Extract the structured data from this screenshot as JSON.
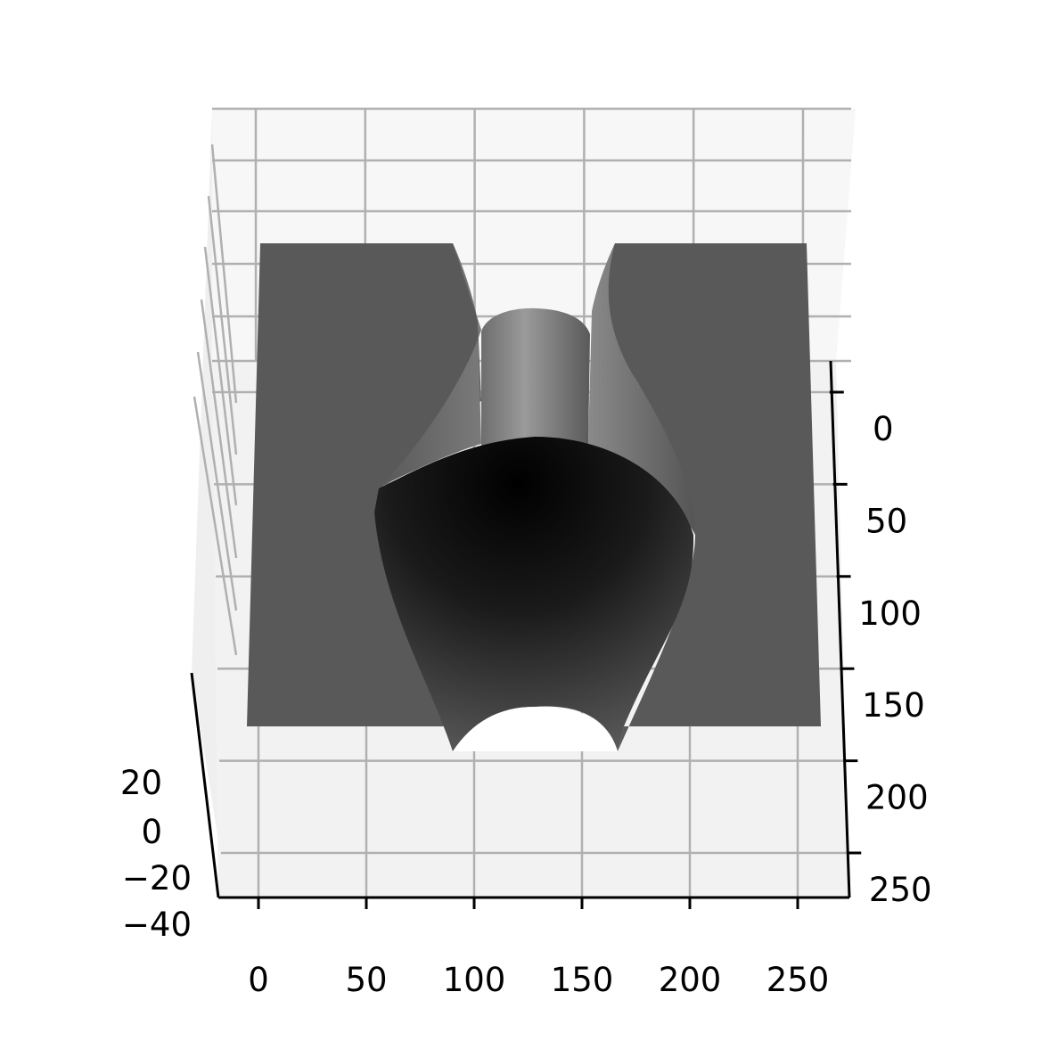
{
  "chart_data": {
    "type": "surface3d",
    "title": "",
    "xlabel": "",
    "ylabel": "",
    "zlabel": "",
    "grid": true,
    "colormap": "gray",
    "x_ticks": [
      0,
      50,
      100,
      150,
      200,
      250
    ],
    "x_tick_labels": [
      "0",
      "50",
      "100",
      "150",
      "200",
      "250"
    ],
    "y_ticks": [
      0,
      50,
      100,
      150,
      200,
      250
    ],
    "y_tick_labels": [
      "0",
      "50",
      "100",
      "150",
      "200",
      "250"
    ],
    "z_ticks": [
      20,
      0,
      -20,
      -40
    ],
    "z_tick_labels": [
      "20",
      "0",
      "−20",
      "−40"
    ],
    "xlim": [
      0,
      260
    ],
    "ylim": [
      0,
      260
    ],
    "zlim": [
      -40,
      30
    ],
    "surface": {
      "description_shape": "flat plane with a central channel containing a rounded ridge",
      "plane_value": 0,
      "plane_extent": [
        0,
        260
      ],
      "channel_x_range": [
        90,
        170
      ],
      "ridge_center_x": 128
    }
  }
}
